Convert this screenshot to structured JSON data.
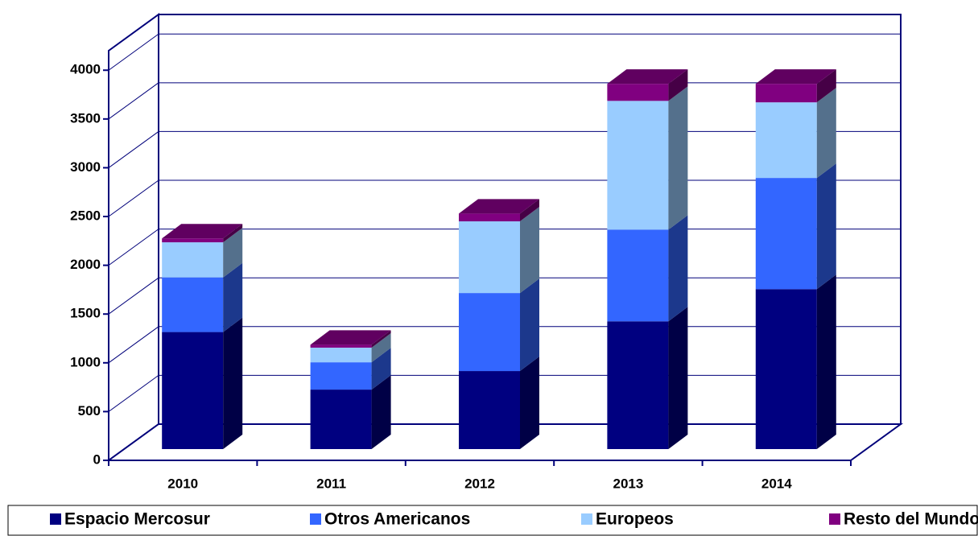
{
  "chart_data": {
    "type": "bar",
    "stacked": true,
    "categories": [
      "2010",
      "2011",
      "2012",
      "2013",
      "2014"
    ],
    "series": [
      {
        "name": "Espacio Mercosur",
        "color": "#000080",
        "values": [
          1200,
          610,
          800,
          1310,
          1640
        ]
      },
      {
        "name": "Otros Americanos",
        "color": "#3366ff",
        "values": [
          560,
          280,
          800,
          940,
          1140
        ]
      },
      {
        "name": "Europeos",
        "color": "#99ccff",
        "values": [
          360,
          150,
          735,
          1320,
          775
        ]
      },
      {
        "name": "Resto del Mundo",
        "color": "#800080",
        "values": [
          40,
          30,
          80,
          175,
          190
        ]
      }
    ],
    "ylim": [
      0,
      4200
    ],
    "yticks": [
      0,
      500,
      1000,
      1500,
      2000,
      2500,
      3000,
      3500,
      4000
    ],
    "grid": true,
    "legend": "bottom"
  }
}
